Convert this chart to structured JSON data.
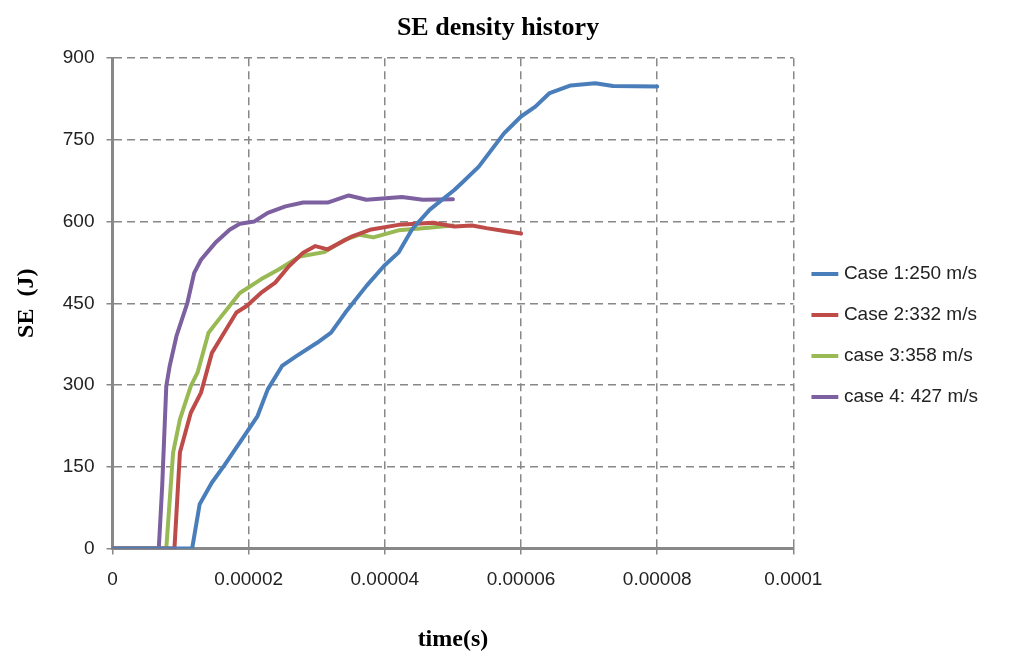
{
  "chart_data": {
    "type": "line",
    "title": "SE density history",
    "xlabel": "time(s)",
    "ylabel": "SE  (J)",
    "xlim": [
      0,
      0.0001
    ],
    "xticks": [
      0,
      {
        "value": 2e-05,
        "label": "0.00002"
      },
      {
        "value": 4e-05,
        "label": "0.00004"
      },
      {
        "value": 6e-05,
        "label": "0.00006"
      },
      {
        "value": 8e-05,
        "label": "0.00008"
      },
      0.0001
    ],
    "ylim": [
      0,
      900
    ],
    "yticks": [
      0,
      150,
      300,
      450,
      600,
      750,
      900
    ],
    "grid": true,
    "legend": "right",
    "marker": "none",
    "line_style": "solid",
    "series": [
      {
        "name": "Case 1:250 m/s",
        "color": "#4a7ebb",
        "x": [
          0,
          1.17e-05,
          1.28e-05,
          1.46e-05,
          1.64e-05,
          1.97e-05,
          2.13e-05,
          2.28e-05,
          2.49e-05,
          2.7e-05,
          3.01e-05,
          3.21e-05,
          3.42e-05,
          3.73e-05,
          3.99e-05,
          4.2e-05,
          4.4e-05,
          4.66e-05,
          5.02e-05,
          5.13e-05,
          5.38e-05,
          5.75e-05,
          6e-05,
          6.21e-05,
          6.42e-05,
          6.73e-05,
          7.09e-05,
          7.35e-05,
          8e-05
        ],
        "values": [
          0,
          0,
          81,
          121,
          152,
          213,
          243,
          292,
          335,
          353,
          378,
          396,
          433,
          482,
          519,
          543,
          586,
          622,
          658,
          671,
          701,
          762,
          793,
          811,
          836,
          850,
          854,
          849,
          848
        ]
      },
      {
        "name": "Case 2:332 m/s",
        "color": "#be4b48",
        "x": [
          0,
          9.1e-06,
          9.9e-06,
          1.15e-05,
          1.3e-05,
          1.46e-05,
          1.61e-05,
          1.82e-05,
          1.97e-05,
          2.18e-05,
          2.39e-05,
          2.59e-05,
          2.8e-05,
          2.98e-05,
          3.16e-05,
          3.52e-05,
          3.78e-05,
          4.2e-05,
          4.71e-05,
          5.02e-05,
          5.28e-05,
          5.49e-05,
          6e-05
        ],
        "values": [
          0,
          0,
          176,
          249,
          286,
          359,
          390,
          433,
          445,
          469,
          488,
          518,
          543,
          555,
          549,
          573,
          585,
          594,
          598,
          591,
          593,
          588,
          578
        ]
      },
      {
        "name": "case 3:358 m/s",
        "color": "#98b954",
        "x": [
          0,
          7.9e-06,
          8.9e-06,
          9.9e-06,
          1.15e-05,
          1.25e-05,
          1.41e-05,
          1.56e-05,
          1.87e-05,
          2.18e-05,
          2.44e-05,
          2.75e-05,
          3.11e-05,
          3.42e-05,
          3.63e-05,
          3.83e-05,
          4.2e-05,
          4.56e-05,
          5e-05
        ],
        "values": [
          0,
          0,
          176,
          237,
          298,
          323,
          396,
          420,
          469,
          494,
          512,
          536,
          544,
          567,
          576,
          571,
          584,
          588,
          593
        ]
      },
      {
        "name": "case 4: 427 m/s",
        "color": "#7d60a0",
        "x": [
          0,
          6.8e-06,
          7.3e-06,
          7.9e-06,
          8.4e-06,
          9.4e-06,
          1.1e-05,
          1.2e-05,
          1.3e-05,
          1.51e-05,
          1.72e-05,
          1.87e-05,
          2.08e-05,
          2.28e-05,
          2.54e-05,
          2.8e-05,
          3.16e-05,
          3.47e-05,
          3.73e-05,
          4.25e-05,
          4.56e-05,
          5e-05
        ],
        "values": [
          0,
          0,
          115,
          298,
          335,
          390,
          451,
          506,
          530,
          561,
          585,
          596,
          600,
          616,
          628,
          635,
          635,
          648,
          640,
          645,
          640,
          641
        ]
      }
    ]
  }
}
